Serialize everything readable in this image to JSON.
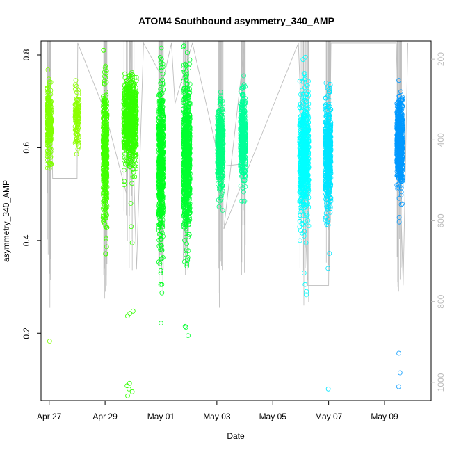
{
  "chart_data": {
    "type": "scatter",
    "title": "ATOM4 Southbound asymmetry_340_AMP",
    "xlabel": "Date",
    "ylabel": "asymmetry_340_AMP",
    "xlim": [
      "2018-04-26T17:00",
      "2018-05-10T16:00"
    ],
    "ylim": [
      0.055,
      0.83
    ],
    "y2lim": [
      1045,
      155
    ],
    "x_ticks": [
      {
        "date": "2018-04-27",
        "label": "Apr 27"
      },
      {
        "date": "2018-04-29",
        "label": "Apr 29"
      },
      {
        "date": "2018-05-01",
        "label": "May 01"
      },
      {
        "date": "2018-05-03",
        "label": "May 03"
      },
      {
        "date": "2018-05-05",
        "label": "May 05"
      },
      {
        "date": "2018-05-07",
        "label": "May 07"
      },
      {
        "date": "2018-05-09",
        "label": "May 09"
      }
    ],
    "y_ticks": [
      0.2,
      0.4,
      0.6,
      0.8
    ],
    "y_tick_labels": [
      "0.2",
      "0.4",
      "0.6",
      "0.8"
    ],
    "y2_ticks": [
      200,
      400,
      600,
      800,
      1000
    ],
    "y2_tick_labels": [
      "200",
      "400",
      "600",
      "800",
      "1000"
    ],
    "grid": false,
    "legend": "none",
    "secondary_line_color": "#bebebe",
    "clusters": [
      {
        "time": "2018-04-27T00:00",
        "width_h": 4.0,
        "center": 0.648,
        "spread": 0.04,
        "count": 260,
        "color": "#80ff00",
        "outliers": [
          0.183,
          0.59,
          0.728
        ],
        "line_min": 0.255
      },
      {
        "time": "2018-04-28T00:00",
        "width_h": 3.5,
        "center": 0.665,
        "spread": 0.03,
        "count": 110,
        "color": "#8cff00",
        "outliers": [
          0.628,
          0.703
        ]
      },
      {
        "time": "2018-04-29T00:00",
        "width_h": 3.5,
        "center": 0.585,
        "spread": 0.075,
        "count": 420,
        "color": "#40ff00",
        "outliers": [
          0.445,
          0.45,
          0.72
        ],
        "line_min": 0.275
      },
      {
        "time": "2018-04-29T21:30",
        "width_h": 11.0,
        "center": 0.655,
        "spread": 0.045,
        "count": 700,
        "color": "#33ff00",
        "outliers": [
          0.065,
          0.074,
          0.08,
          0.087,
          0.092,
          0.237,
          0.243,
          0.248,
          0.395,
          0.43,
          0.48,
          0.745
        ],
        "line_min": 0.335
      },
      {
        "time": "2018-05-01T00:00",
        "width_h": 4.0,
        "center": 0.56,
        "spread": 0.085,
        "count": 600,
        "color": "#00ff20",
        "outliers": [
          0.222,
          0.287,
          0.33,
          0.335,
          0.36,
          0.795,
          0.785
        ],
        "line_min": 0.285
      },
      {
        "time": "2018-05-01T22:00",
        "width_h": 6.0,
        "center": 0.58,
        "spread": 0.08,
        "count": 750,
        "color": "#00ff30",
        "outliers": [
          0.195,
          0.213,
          0.215,
          0.345,
          0.35,
          0.36,
          0.37,
          0.38
        ],
        "line_min": 0.325
      },
      {
        "time": "2018-05-03T03:00",
        "width_h": 5.0,
        "center": 0.6,
        "spread": 0.045,
        "count": 420,
        "color": "#00ff80",
        "outliers": [
          0.473,
          0.485,
          0.72
        ],
        "line_min": 0.255
      },
      {
        "time": "2018-05-03T22:30",
        "width_h": 4.5,
        "center": 0.62,
        "spread": 0.045,
        "count": 420,
        "color": "#00ff99",
        "outliers": [
          0.483,
          0.73
        ],
        "line_min": 0.325
      },
      {
        "time": "2018-05-06T03:00",
        "width_h": 8.0,
        "center": 0.58,
        "spread": 0.06,
        "count": 650,
        "color": "#00ffff",
        "outliers": [
          0.283,
          0.29,
          0.305,
          0.33,
          0.395,
          0.79,
          0.795
        ],
        "line_min": 0.26
      },
      {
        "time": "2018-05-06T23:30",
        "width_h": 5.0,
        "center": 0.585,
        "spread": 0.055,
        "count": 500,
        "color": "#00e5ff",
        "outliers": [
          0.08,
          0.34,
          0.372,
          0.435,
          0.44,
          0.72
        ],
        "line_min": 0.335
      },
      {
        "time": "2018-05-09T13:00",
        "width_h": 5.0,
        "center": 0.61,
        "spread": 0.045,
        "count": 560,
        "color": "#0099ff",
        "outliers": [
          0.085,
          0.115,
          0.157,
          0.44,
          0.45,
          0.745
        ],
        "line_min": 0.29
      }
    ],
    "secondary_line": [
      [
        "2018-04-26T23:00",
        160
      ],
      [
        "2018-04-27T00:00",
        495
      ],
      [
        "2018-04-27T01:00",
        160
      ],
      [
        "2018-04-27T03:00",
        495
      ],
      [
        "2018-04-28T00:00",
        495
      ],
      [
        "2018-04-28T00:30",
        160
      ],
      [
        "2018-04-28T00:30",
        160
      ],
      [
        "2018-04-29T00:00",
        330
      ],
      [
        "2018-04-29T19:00",
        540
      ],
      [
        "2018-04-29T21:30",
        160
      ],
      [
        "2018-04-30T03:00",
        720
      ],
      [
        "2018-04-30T09:00",
        160
      ],
      [
        "2018-05-01T02:00",
        250
      ],
      [
        "2018-05-01T09:00",
        160
      ],
      [
        "2018-05-01T12:00",
        310
      ],
      [
        "2018-05-02T03:00",
        160
      ],
      [
        "2018-05-03T03:00",
        465
      ],
      [
        "2018-05-03T20:00",
        460
      ],
      [
        "2018-05-04T00:00",
        160
      ],
      [
        "2018-05-03T06:00",
        620
      ],
      [
        "2018-05-05T22:00",
        160
      ],
      [
        "2018-05-06T06:00",
        760
      ],
      [
        "2018-05-07T00:00",
        760
      ],
      [
        "2018-05-07T02:00",
        160
      ],
      [
        "2018-05-09T10:00",
        160
      ],
      [
        "2018-05-09T16:00",
        760
      ],
      [
        "2018-05-09T20:00",
        160
      ]
    ]
  }
}
